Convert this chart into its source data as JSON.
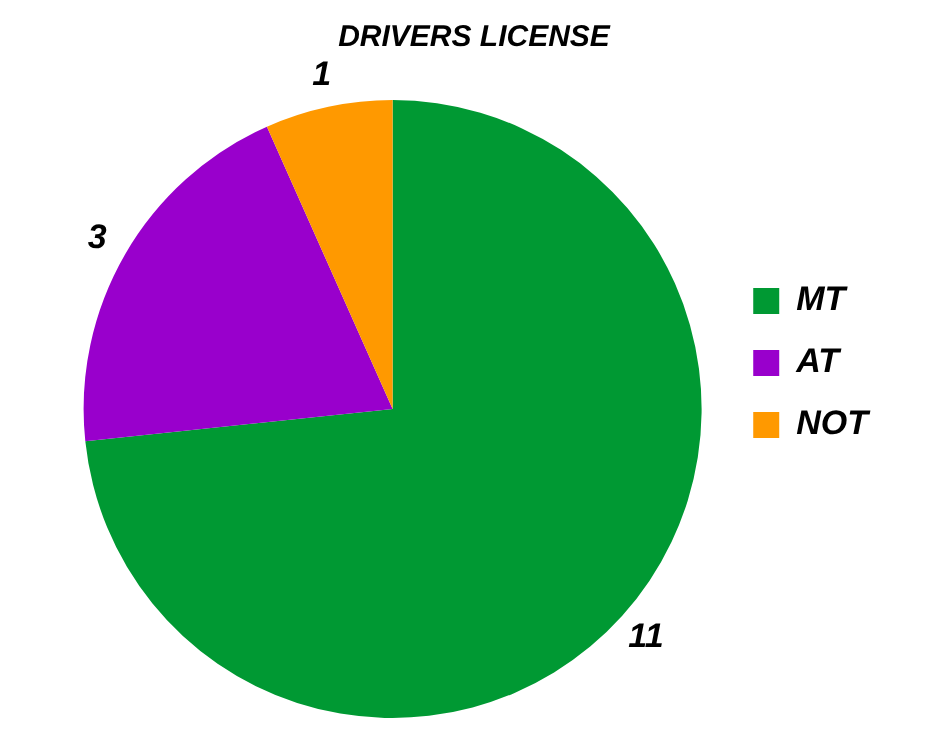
{
  "chart_data": {
    "type": "pie",
    "title": "DRIVERS LICENSE",
    "categories": [
      "MT",
      "AT",
      "NOT"
    ],
    "values": [
      11,
      3,
      1
    ],
    "colors": [
      "#009933",
      "#9900cc",
      "#ff9900"
    ],
    "data_labels": true,
    "legend": "right"
  }
}
